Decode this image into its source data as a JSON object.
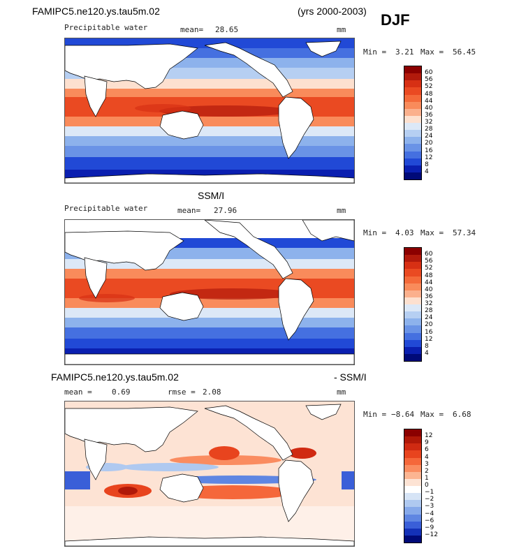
{
  "header": {
    "model": "FAMIPC5.ne120.ys.tau5m.02",
    "years": "(yrs 2000-2003)",
    "season": "DJF",
    "obs_title": "SSM/I",
    "diff_model": "FAMIPC5.ne120.ys.tau5m.02",
    "diff_obs": "- SSM/I"
  },
  "panels": [
    {
      "variable": "Precipitable water",
      "mean_label": "mean=",
      "mean_value": "28.65",
      "units": "mm",
      "min_label": "Min =",
      "min_value": "3.21",
      "max_label": "Max =",
      "max_value": "56.45",
      "colorbar": {
        "levels": [
          "60",
          "56",
          "52",
          "48",
          "44",
          "40",
          "36",
          "32",
          "28",
          "24",
          "20",
          "16",
          "12",
          "8",
          "4"
        ],
        "colors": [
          "#8b0000",
          "#b21a0c",
          "#d73014",
          "#ea4a22",
          "#f46a3a",
          "#f98b5b",
          "#fbb08d",
          "#fde0cf",
          "#dce8f7",
          "#b6cff2",
          "#8db2ec",
          "#6a93e6",
          "#4570e0",
          "#2149d6",
          "#0a1fb0",
          "#000a78"
        ]
      }
    },
    {
      "variable": "Precipitable water",
      "mean_label": "mean=",
      "mean_value": "27.96",
      "units": "mm",
      "min_label": "Min =",
      "min_value": "4.03",
      "max_label": "Max =",
      "max_value": "57.34",
      "colorbar": {
        "levels": [
          "60",
          "56",
          "52",
          "48",
          "44",
          "40",
          "36",
          "32",
          "28",
          "24",
          "20",
          "16",
          "12",
          "8",
          "4"
        ],
        "colors": [
          "#8b0000",
          "#b21a0c",
          "#d73014",
          "#ea4a22",
          "#f46a3a",
          "#f98b5b",
          "#fbb08d",
          "#fde0cf",
          "#dce8f7",
          "#b6cff2",
          "#8db2ec",
          "#6a93e6",
          "#4570e0",
          "#2149d6",
          "#0a1fb0",
          "#000a78"
        ]
      }
    },
    {
      "mean_label": "mean =",
      "mean_value": "0.69",
      "rmse_label": "rmse =",
      "rmse_value": "2.08",
      "units": "mm",
      "min_label": "Min =",
      "min_value": "−8.64",
      "max_label": "Max =",
      "max_value": "6.68",
      "colorbar": {
        "levels": [
          "12",
          "9",
          "6",
          "4",
          "3",
          "2",
          "1",
          "0",
          "−1",
          "−2",
          "−3",
          "−4",
          "−6",
          "−9",
          "−12"
        ],
        "colors": [
          "#8b0000",
          "#b01808",
          "#d02a12",
          "#e8441e",
          "#f5673a",
          "#fa8c60",
          "#fcb592",
          "#fde3d4",
          "#ffffff",
          "#d6e4f6",
          "#afc9f0",
          "#86a9ea",
          "#5f86e2",
          "#3a5fd8",
          "#1431b8",
          "#000a78"
        ]
      }
    }
  ]
}
